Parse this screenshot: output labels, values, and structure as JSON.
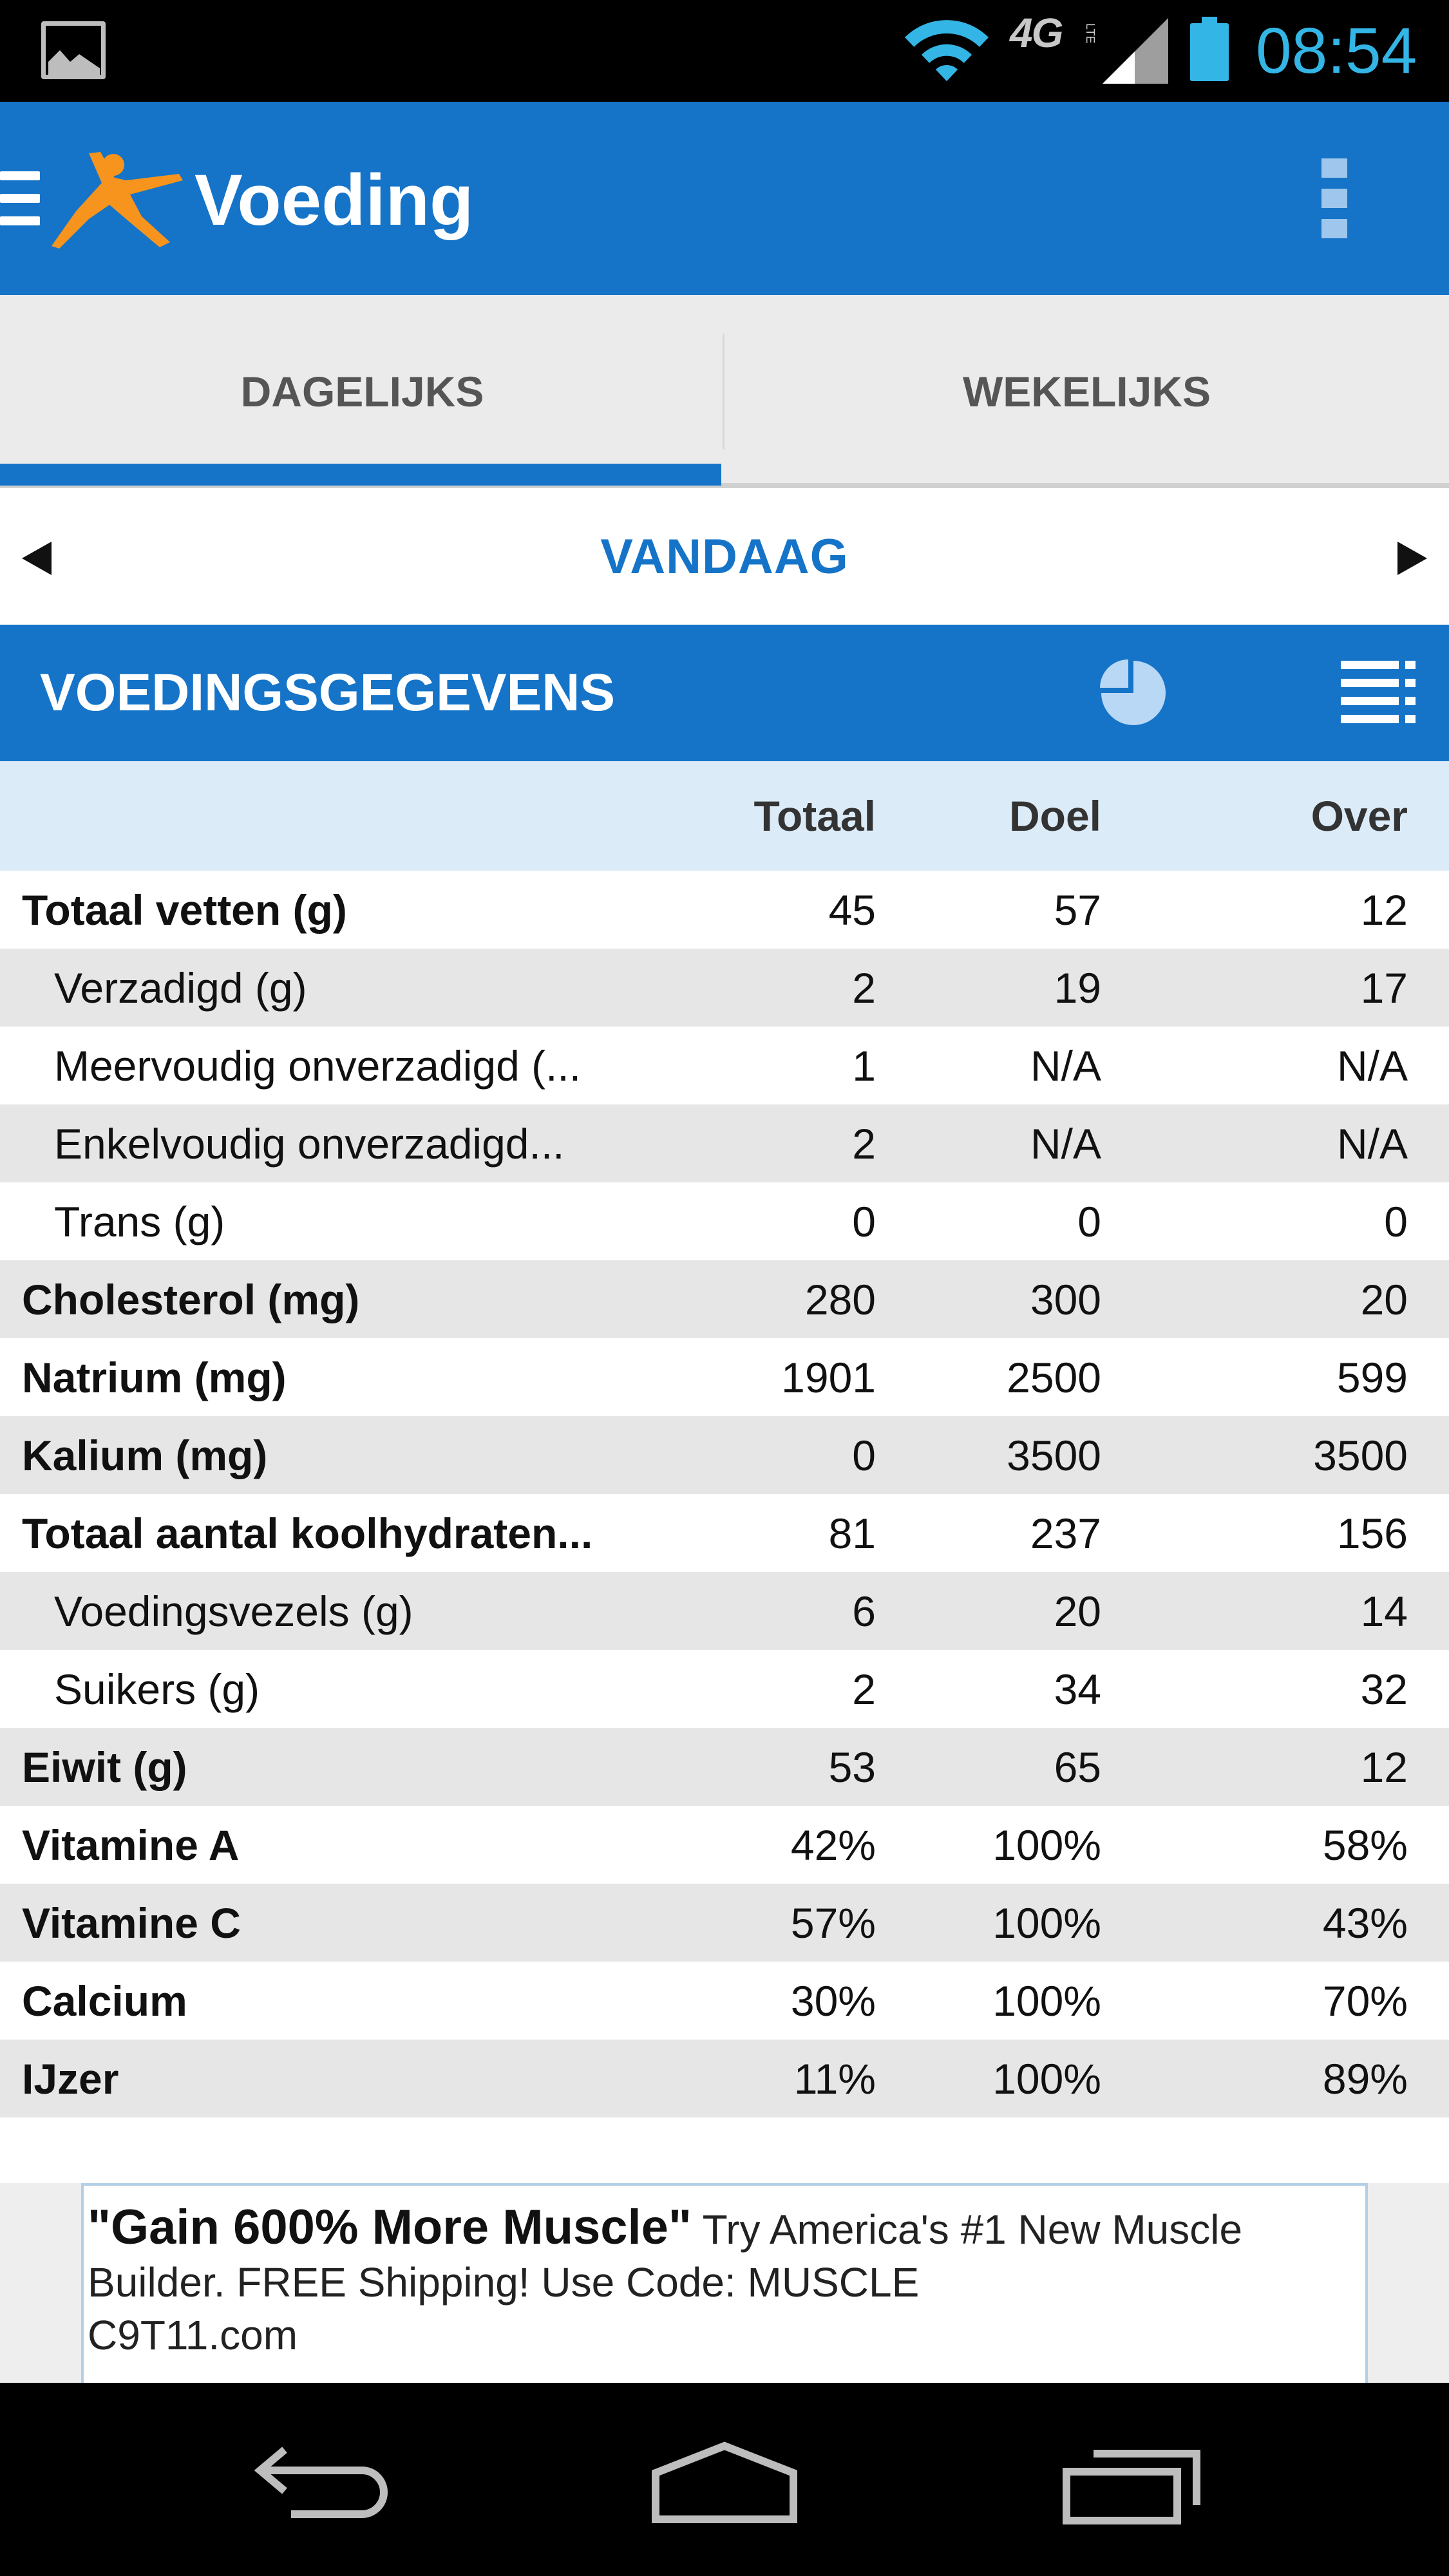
{
  "status_bar": {
    "network": "4G",
    "network_sub": "LTE",
    "time": "08:54",
    "icons": [
      "gallery-icon",
      "wifi-icon",
      "signal-icon",
      "battery-icon"
    ]
  },
  "app_bar": {
    "title": "Voeding",
    "icons": [
      "hamburger-menu-icon",
      "app-logo-icon",
      "overflow-menu-icon"
    ],
    "logo_color": "#f7941d",
    "background": "#1574c8"
  },
  "tabs": [
    {
      "label": "DAGELIJKS",
      "selected": true
    },
    {
      "label": "WEKELIJKS",
      "selected": false
    }
  ],
  "date_nav": {
    "label": "VANDAAG",
    "icons": [
      "chevron-left-icon",
      "chevron-right-icon"
    ]
  },
  "section": {
    "title": "VOEDINGSGEGEVENS",
    "icons": [
      "pie-chart-icon",
      "list-view-icon"
    ]
  },
  "table": {
    "headers": {
      "total": "Totaal",
      "goal": "Doel",
      "over": "Over"
    },
    "rows": [
      {
        "name": "Totaal vetten (g)",
        "total": "45",
        "goal": "57",
        "over": "12",
        "level": "main"
      },
      {
        "name": "Verzadigd (g)",
        "total": "2",
        "goal": "19",
        "over": "17",
        "level": "sub"
      },
      {
        "name": "Meervoudig onverzadigd (...",
        "total": "1",
        "goal": "N/A",
        "over": "N/A",
        "level": "sub"
      },
      {
        "name": "Enkelvoudig onverzadigd...",
        "total": "2",
        "goal": "N/A",
        "over": "N/A",
        "level": "sub"
      },
      {
        "name": "Trans (g)",
        "total": "0",
        "goal": "0",
        "over": "0",
        "level": "sub"
      },
      {
        "name": "Cholesterol (mg)",
        "total": "280",
        "goal": "300",
        "over": "20",
        "level": "main"
      },
      {
        "name": "Natrium (mg)",
        "total": "1901",
        "goal": "2500",
        "over": "599",
        "level": "main"
      },
      {
        "name": "Kalium (mg)",
        "total": "0",
        "goal": "3500",
        "over": "3500",
        "level": "main"
      },
      {
        "name": "Totaal aantal koolhydraten...",
        "total": "81",
        "goal": "237",
        "over": "156",
        "level": "main"
      },
      {
        "name": "Voedingsvezels (g)",
        "total": "6",
        "goal": "20",
        "over": "14",
        "level": "sub"
      },
      {
        "name": "Suikers (g)",
        "total": "2",
        "goal": "34",
        "over": "32",
        "level": "sub"
      },
      {
        "name": "Eiwit (g)",
        "total": "53",
        "goal": "65",
        "over": "12",
        "level": "main"
      },
      {
        "name": "Vitamine A",
        "total": "42%",
        "goal": "100%",
        "over": "58%",
        "level": "main"
      },
      {
        "name": "Vitamine C",
        "total": "57%",
        "goal": "100%",
        "over": "43%",
        "level": "main"
      },
      {
        "name": "Calcium",
        "total": "30%",
        "goal": "100%",
        "over": "70%",
        "level": "main"
      },
      {
        "name": "IJzer",
        "total": "11%",
        "goal": "100%",
        "over": "89%",
        "level": "main"
      }
    ]
  },
  "ad": {
    "headline": "\"Gain 600% More Muscle\"",
    "body": " Try America's #1 New Muscle Builder. FREE Shipping! Use Code: MUSCLE",
    "domain": "C9T11.com"
  },
  "nav_bar": {
    "icons": [
      "back-icon",
      "home-icon",
      "recents-icon"
    ]
  }
}
